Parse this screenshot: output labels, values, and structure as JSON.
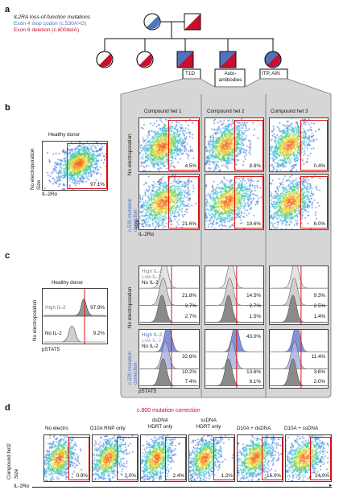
{
  "panels": {
    "a": "a",
    "b": "b",
    "c": "c",
    "d": "d"
  },
  "legend": {
    "line1": "IL2RA loss-of-function mutations",
    "line2": "Exon 4 stop codon (c.530A>G)",
    "line3": "Exon 8 deletion (c.800delA)",
    "blue": "#4f73bf",
    "red": "#c8102e"
  },
  "pedigree": {
    "labels": [
      "T1D",
      "Auto-\nantibodies",
      "ITP, AIN"
    ]
  },
  "section_b": {
    "healthy_title": "Healthy donor",
    "healthy_pct": "97.1%",
    "yaxis": "No electroporation",
    "size": "Size",
    "xaxis": "IL-2Rα",
    "columns": [
      "Compound het 1",
      "Compound het 2",
      "Compound het 3"
    ],
    "row_top": "No electroporation",
    "row_bottom": "c.530 mutation correction",
    "pct_top": [
      "4.5%",
      "2.8%",
      "0.4%"
    ],
    "pct_bottom": [
      "21.6%",
      "19.6%",
      "6.0%"
    ]
  },
  "section_c": {
    "healthy_title": "Healthy donor",
    "high": "High IL-2",
    "low": "Low IL-2",
    "none": "No IL-2",
    "healthy_pcts": [
      "97.9%",
      "9.2%"
    ],
    "yaxis": "No electroporation",
    "xaxis": "pSTAT5",
    "row_top": "No electroporation",
    "row_bottom": "c.530 mutation correction",
    "top_pcts": [
      [
        "21.8%",
        "3.7%",
        "2.7%"
      ],
      [
        "14.5%",
        "2.7%",
        "1.5%"
      ],
      [
        "9.3%",
        "2.5%",
        "1.4%"
      ]
    ],
    "bottom_pcts": [
      [
        "32.6%",
        "10.2%",
        "7.4%"
      ],
      [
        "43.0%",
        "13.6%",
        "8.1%"
      ],
      [
        "11.4%",
        "3.6%",
        "2.0%"
      ]
    ]
  },
  "section_d": {
    "title": "c.800 mutation correction",
    "columns": [
      "No electro",
      "D10A RNP only",
      "dsDNA\nHDRT only",
      "ssDNA\nHDRT only",
      "D10A + dsDNA",
      "D10A + ssDNA"
    ],
    "pcts": [
      "0.9%",
      "2.0%",
      "2.4%",
      "1.2%",
      "16.0%",
      "24.9%"
    ],
    "yaxis": "Compound het2",
    "size": "Size",
    "xaxis": "IL-2Rα"
  }
}
